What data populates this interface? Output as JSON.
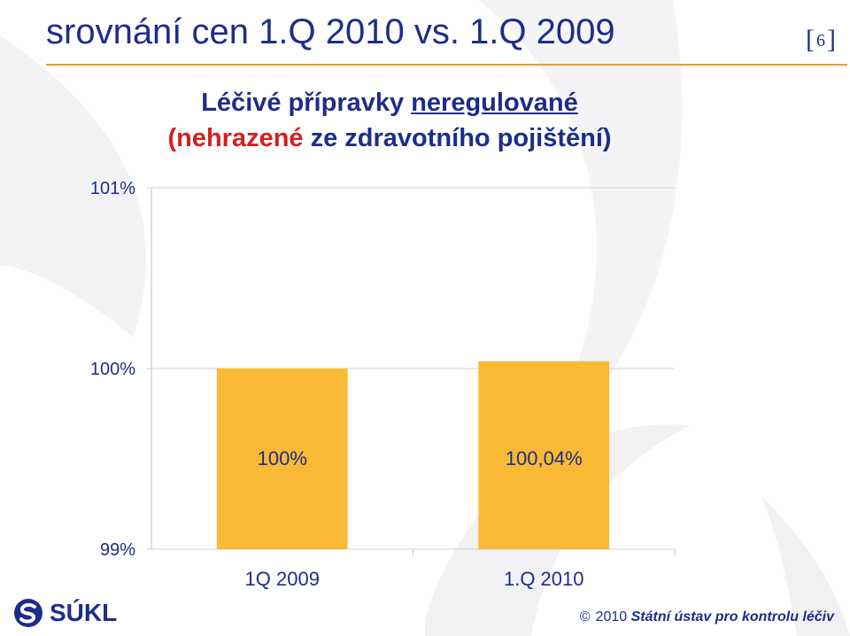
{
  "header": {
    "title": "srovnání cen 1.Q 2010 vs. 1.Q 2009",
    "page_open": "[",
    "page_number": "6",
    "page_close": "]"
  },
  "subtitle": {
    "line1_part1": "Léčivé přípravky ",
    "line1_part2": "neregulované",
    "line2_part1": "(nehrazené",
    "line2_part2": " ze zdravotního pojištění)"
  },
  "footer": {
    "logo_text": "SÚKL",
    "copyright_symbol": "©",
    "year": "2010",
    "organization": "Státní ústav pro kontrolu léčiv"
  },
  "colors": {
    "title": "#1d2d8a",
    "accent_rule": "#f39a2c",
    "bar": "#f9b934",
    "highlight_red": "#d71f1f"
  },
  "chart_data": {
    "type": "bar",
    "categories": [
      "1Q 2009",
      "1.Q 2010"
    ],
    "values": [
      100,
      100.04
    ],
    "data_labels": [
      "100%",
      "100,04%"
    ],
    "ylim": [
      99,
      101
    ],
    "yticks": [
      {
        "value": 101,
        "label": "101%"
      },
      {
        "value": 100,
        "label": "100%"
      },
      {
        "value": 99,
        "label": "99%"
      }
    ],
    "grid": true,
    "legend": "none",
    "title": "",
    "xlabel": "",
    "ylabel": ""
  }
}
